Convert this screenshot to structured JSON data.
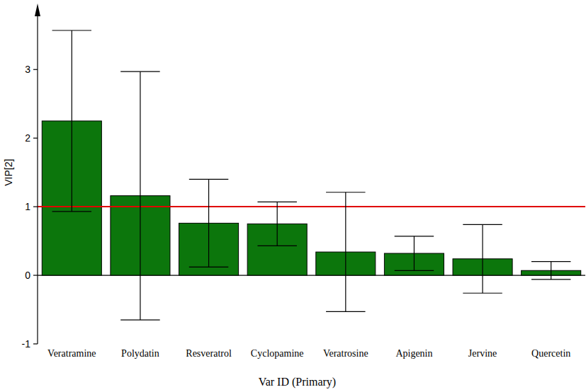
{
  "chart_data": {
    "type": "bar",
    "x_label": "Var ID (Primary)",
    "y_label": "VIP[2]",
    "categories": [
      "Veratramine",
      "Polydatin",
      "Resveratrol",
      "Cyclopamine",
      "Veratrosine",
      "Apigenin",
      "Jervine",
      "Quercetin"
    ],
    "values": [
      2.25,
      1.16,
      0.76,
      0.75,
      0.34,
      0.32,
      0.24,
      0.07
    ],
    "errors": [
      1.32,
      1.81,
      0.64,
      0.32,
      0.87,
      0.25,
      0.5,
      0.13
    ],
    "color": "#0c760c",
    "ylim": [
      -1,
      3.9
    ],
    "yticks": [
      -1,
      0,
      1,
      2,
      3
    ],
    "grid": false,
    "reference_lines": [
      {
        "value": 1,
        "color": "#e00000"
      }
    ]
  }
}
